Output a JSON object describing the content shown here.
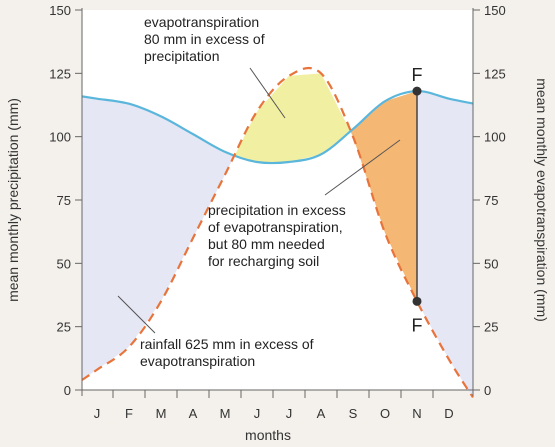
{
  "chart_data": {
    "type": "line",
    "xlabel": "months",
    "ylabel_left": "mean monthly precipitation (mm)",
    "ylabel_right": "mean monthly evapotranspiration (mm)",
    "ylim": [
      0,
      150
    ],
    "yticks": [
      0,
      25,
      50,
      75,
      100,
      125,
      150
    ],
    "categories": [
      "J",
      "F",
      "M",
      "A",
      "M",
      "J",
      "J",
      "A",
      "S",
      "O",
      "N",
      "D"
    ],
    "series": [
      {
        "key": "precipitation",
        "color": "#5bb6dc",
        "style": "solid",
        "values": [
          115,
          113,
          108,
          101,
          94,
          90,
          90,
          93,
          103,
          114,
          118,
          115
        ]
      },
      {
        "key": "evapotranspiration",
        "color": "#e8743b",
        "style": "dashed",
        "values": [
          8,
          17,
          35,
          60,
          85,
          110,
          124,
          125,
          100,
          62,
          35,
          12
        ]
      }
    ],
    "points": [
      {
        "label": "F",
        "month": "N",
        "value": 118
      },
      {
        "label": "F",
        "month": "N",
        "value": 35
      }
    ],
    "annotations": [
      {
        "key": "excess_et",
        "lines": [
          "evapotranspiration",
          "80 mm in excess of",
          "precipitation"
        ],
        "fill": "#f1f0a2"
      },
      {
        "key": "recharge",
        "lines": [
          "precipitation in excess",
          "of evapotranspiration,",
          "but 80 mm needed",
          "for recharging soil"
        ],
        "fill": "#f5b774"
      },
      {
        "key": "rainfall",
        "lines": [
          "rainfall 625 mm in excess of",
          "evapotranspiration"
        ],
        "fill": "#e6e7f5"
      }
    ]
  }
}
